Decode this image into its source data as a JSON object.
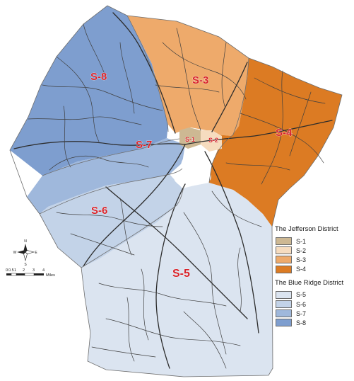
{
  "map": {
    "districts": [
      {
        "id": "S-1",
        "label": "S-1",
        "color": "#cdb893"
      },
      {
        "id": "S-2",
        "label": "S-2",
        "color": "#f6dcbf"
      },
      {
        "id": "S-3",
        "label": "S-3",
        "color": "#eeaa6b"
      },
      {
        "id": "S-4",
        "label": "S-4",
        "color": "#dc7b23"
      },
      {
        "id": "S-5",
        "label": "S-5",
        "color": "#dbe4f0"
      },
      {
        "id": "S-6",
        "label": "S-6",
        "color": "#c3d3e8"
      },
      {
        "id": "S-7",
        "label": "S-7",
        "color": "#9fb8dc"
      },
      {
        "id": "S-8",
        "label": "S-8",
        "color": "#7e9ecf"
      }
    ],
    "reservoir_color": "#ffffff",
    "road_color": "#3f3f3f"
  },
  "legend": {
    "groups": [
      {
        "title": "The Jefferson District",
        "items": [
          {
            "label": "S-1",
            "color": "#cdb893"
          },
          {
            "label": "S-2",
            "color": "#f6dcbf"
          },
          {
            "label": "S-3",
            "color": "#eeaa6b"
          },
          {
            "label": "S-4",
            "color": "#dc7b23"
          }
        ]
      },
      {
        "title": "The Blue Ridge District",
        "items": [
          {
            "label": "S-5",
            "color": "#dbe4f0"
          },
          {
            "label": "S-6",
            "color": "#c3d3e8"
          },
          {
            "label": "S-7",
            "color": "#9fb8dc"
          },
          {
            "label": "S-8",
            "color": "#7e9ecf"
          }
        ]
      }
    ]
  },
  "compass": {
    "n": "N",
    "s": "S",
    "e": "E",
    "w": "W"
  },
  "scale_bar": {
    "ticks": [
      "0",
      "0.5",
      "1",
      "2",
      "3",
      "4"
    ],
    "unit": "Miles"
  }
}
